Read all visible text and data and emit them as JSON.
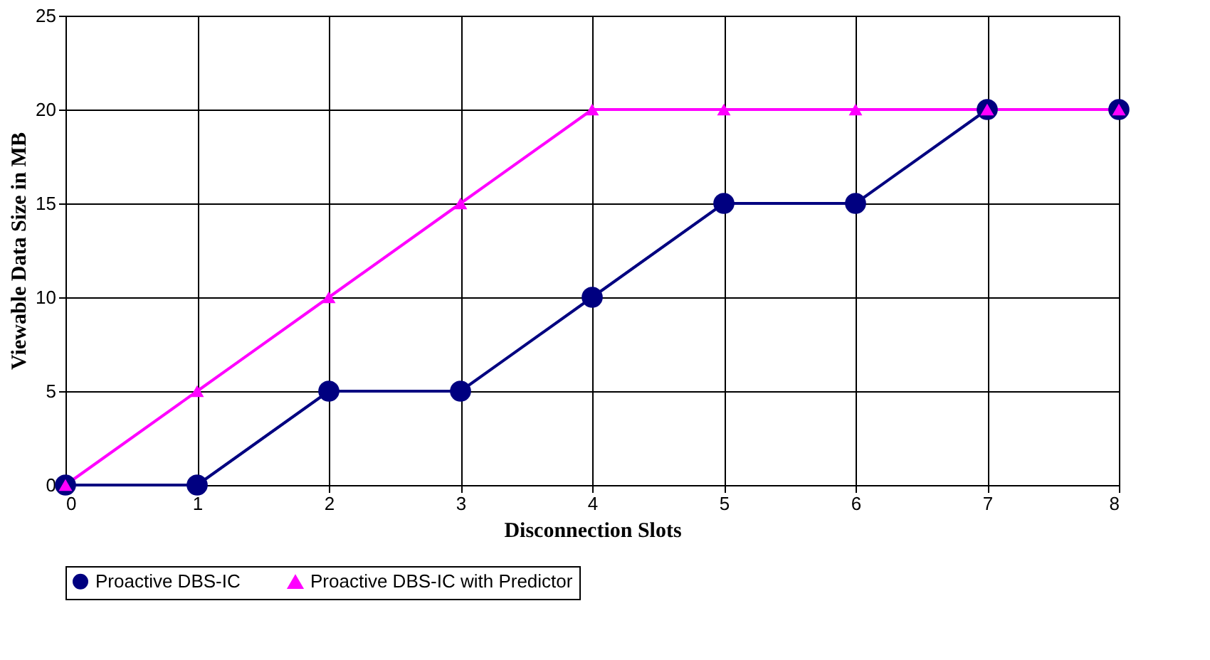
{
  "chart_data": {
    "type": "line",
    "xlabel": "Disconnection Slots",
    "ylabel": "Viewable Data Size in MB",
    "x": [
      0,
      1,
      2,
      3,
      4,
      5,
      6,
      7,
      8
    ],
    "series": [
      {
        "name": "Proactive DBS-IC",
        "color": "#000080",
        "marker": "circle",
        "values": [
          0,
          0,
          5,
          5,
          10,
          15,
          15,
          20,
          20
        ]
      },
      {
        "name": "Proactive DBS-IC with Predictor",
        "color": "#ff00ff",
        "marker": "triangle",
        "values": [
          0,
          5,
          10,
          15,
          20,
          20,
          20,
          20,
          20
        ]
      }
    ],
    "xlim": [
      0,
      8
    ],
    "xticks": [
      0,
      1,
      2,
      3,
      4,
      5,
      6,
      7,
      8
    ],
    "ylim": [
      0,
      25
    ],
    "yticks": [
      0,
      5,
      10,
      15,
      20,
      25
    ],
    "grid": true,
    "legend": "bottom",
    "line_style": "solid"
  }
}
